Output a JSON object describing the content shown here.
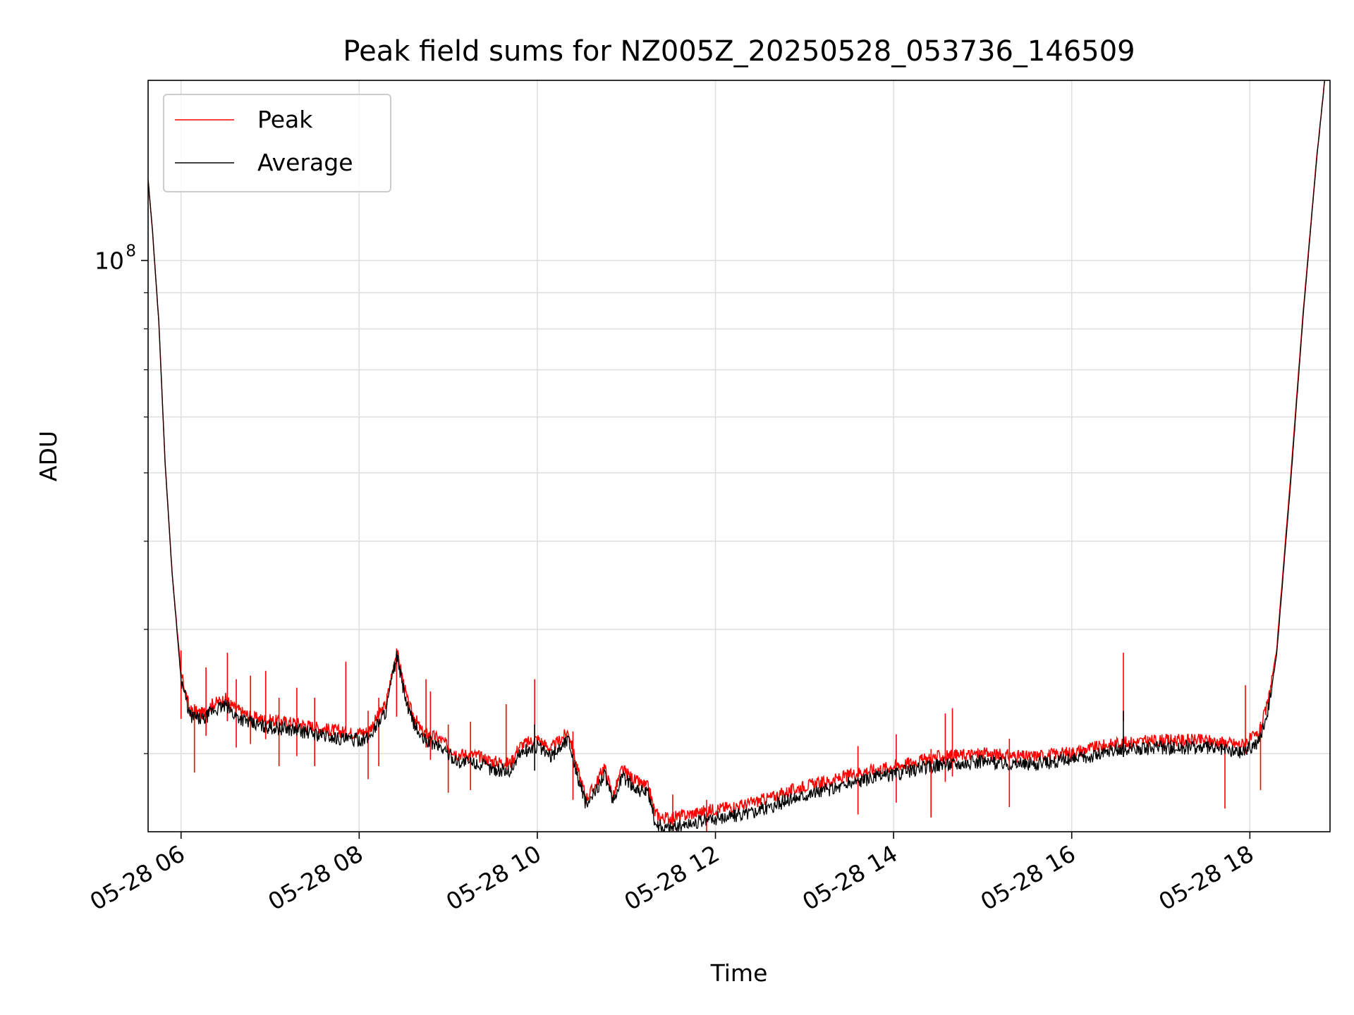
{
  "chart_data": {
    "type": "line",
    "title": "Peak field sums for NZ005Z_20250528_053736_146509",
    "xlabel": "Time",
    "ylabel": "ADU",
    "y_scale": "log",
    "x_range_hours": [
      5.63,
      18.9
    ],
    "ylim": [
      15500000,
      180000000
    ],
    "grid": true,
    "legend_position": "upper-left",
    "x_ticks": [
      {
        "value": 6,
        "label": "05-28 06"
      },
      {
        "value": 8,
        "label": "05-28 08"
      },
      {
        "value": 10,
        "label": "05-28 10"
      },
      {
        "value": 12,
        "label": "05-28 12"
      },
      {
        "value": 14,
        "label": "05-28 14"
      },
      {
        "value": 16,
        "label": "05-28 16"
      },
      {
        "value": 18,
        "label": "05-28 18"
      }
    ],
    "y_major_ticks": [
      {
        "value": 100000000,
        "base": "10",
        "exp": "8"
      }
    ],
    "y_minor_ticks": [
      20000000,
      30000000,
      40000000,
      50000000,
      60000000,
      70000000,
      80000000,
      90000000
    ],
    "colors": {
      "peak": "#ff0000",
      "average": "#000000",
      "grid": "#e0e0e0"
    },
    "series": [
      {
        "name": "Peak",
        "color": "#ff0000",
        "points": [
          [
            5.63,
            130000000
          ],
          [
            5.68,
            110000000
          ],
          [
            5.75,
            82000000
          ],
          [
            5.82,
            52000000
          ],
          [
            5.9,
            36000000
          ],
          [
            6.0,
            26000000
          ],
          [
            6.1,
            23000000
          ],
          [
            6.25,
            22800000
          ],
          [
            6.35,
            23500000
          ],
          [
            6.5,
            23900000
          ],
          [
            6.6,
            23200000
          ],
          [
            6.8,
            22500000
          ],
          [
            7.0,
            22300000
          ],
          [
            7.3,
            22100000
          ],
          [
            7.6,
            21700000
          ],
          [
            7.9,
            21400000
          ],
          [
            8.1,
            21500000
          ],
          [
            8.3,
            23500000
          ],
          [
            8.42,
            28000000
          ],
          [
            8.55,
            23500000
          ],
          [
            8.7,
            21500000
          ],
          [
            8.9,
            21000000
          ],
          [
            9.1,
            20000000
          ],
          [
            9.3,
            19900000
          ],
          [
            9.5,
            19500000
          ],
          [
            9.7,
            19400000
          ],
          [
            9.8,
            20500000
          ],
          [
            10.0,
            21000000
          ],
          [
            10.15,
            20300000
          ],
          [
            10.35,
            21500000
          ],
          [
            10.45,
            19000000
          ],
          [
            10.55,
            17300000
          ],
          [
            10.65,
            18000000
          ],
          [
            10.75,
            19200000
          ],
          [
            10.85,
            17400000
          ],
          [
            10.95,
            19000000
          ],
          [
            11.1,
            18300000
          ],
          [
            11.25,
            17900000
          ],
          [
            11.32,
            16500000
          ],
          [
            11.4,
            16200000
          ],
          [
            11.6,
            16300000
          ],
          [
            11.8,
            16500000
          ],
          [
            12.0,
            16700000
          ],
          [
            12.3,
            16900000
          ],
          [
            12.6,
            17300000
          ],
          [
            13.0,
            18000000
          ],
          [
            13.3,
            18300000
          ],
          [
            13.6,
            18800000
          ],
          [
            14.0,
            19200000
          ],
          [
            14.5,
            19800000
          ],
          [
            15.0,
            20000000
          ],
          [
            15.5,
            19800000
          ],
          [
            16.0,
            20100000
          ],
          [
            16.5,
            20700000
          ],
          [
            17.0,
            20900000
          ],
          [
            17.5,
            20900000
          ],
          [
            17.9,
            20600000
          ],
          [
            18.1,
            21300000
          ],
          [
            18.2,
            23500000
          ],
          [
            18.3,
            28000000
          ],
          [
            18.45,
            48000000
          ],
          [
            18.6,
            85000000
          ],
          [
            18.75,
            140000000
          ],
          [
            18.84,
            180000000
          ]
        ]
      },
      {
        "name": "Average",
        "color": "#000000",
        "points": [
          [
            5.63,
            130000000
          ],
          [
            5.68,
            110000000
          ],
          [
            5.75,
            82000000
          ],
          [
            5.82,
            52000000
          ],
          [
            5.9,
            36000000
          ],
          [
            6.0,
            25500000
          ],
          [
            6.1,
            22600000
          ],
          [
            6.25,
            22300000
          ],
          [
            6.35,
            23000000
          ],
          [
            6.5,
            23400000
          ],
          [
            6.6,
            22700000
          ],
          [
            6.8,
            22000000
          ],
          [
            7.0,
            21800000
          ],
          [
            7.3,
            21600000
          ],
          [
            7.6,
            21200000
          ],
          [
            7.9,
            20900000
          ],
          [
            8.1,
            21000000
          ],
          [
            8.3,
            23000000
          ],
          [
            8.42,
            27500000
          ],
          [
            8.55,
            23000000
          ],
          [
            8.7,
            21000000
          ],
          [
            8.9,
            20500000
          ],
          [
            9.1,
            19500000
          ],
          [
            9.3,
            19400000
          ],
          [
            9.5,
            19000000
          ],
          [
            9.7,
            18900000
          ],
          [
            9.8,
            20000000
          ],
          [
            10.0,
            20500000
          ],
          [
            10.15,
            19800000
          ],
          [
            10.35,
            21000000
          ],
          [
            10.45,
            18600000
          ],
          [
            10.55,
            16900000
          ],
          [
            10.65,
            17600000
          ],
          [
            10.75,
            18800000
          ],
          [
            10.85,
            17000000
          ],
          [
            10.95,
            18600000
          ],
          [
            11.1,
            17900000
          ],
          [
            11.25,
            17500000
          ],
          [
            11.32,
            16000000
          ],
          [
            11.4,
            15700000
          ],
          [
            11.6,
            15800000
          ],
          [
            11.8,
            16000000
          ],
          [
            12.0,
            16200000
          ],
          [
            12.3,
            16400000
          ],
          [
            12.6,
            16800000
          ],
          [
            13.0,
            17500000
          ],
          [
            13.3,
            17800000
          ],
          [
            13.6,
            18300000
          ],
          [
            14.0,
            18700000
          ],
          [
            14.5,
            19300000
          ],
          [
            15.0,
            19500000
          ],
          [
            15.5,
            19300000
          ],
          [
            16.0,
            19600000
          ],
          [
            16.5,
            20200000
          ],
          [
            17.0,
            20400000
          ],
          [
            17.5,
            20400000
          ],
          [
            17.9,
            20100000
          ],
          [
            18.1,
            20800000
          ],
          [
            18.2,
            23000000
          ],
          [
            18.3,
            27500000
          ],
          [
            18.45,
            47000000
          ],
          [
            18.6,
            84000000
          ],
          [
            18.75,
            139000000
          ],
          [
            18.84,
            180000000
          ]
        ]
      }
    ],
    "peak_spikes": [
      [
        6.0,
        28000000
      ],
      [
        6.15,
        23500000
      ],
      [
        6.28,
        26500000
      ],
      [
        6.52,
        27800000
      ],
      [
        6.62,
        25500000
      ],
      [
        6.78,
        25800000
      ],
      [
        6.95,
        26200000
      ],
      [
        7.1,
        24000000
      ],
      [
        7.3,
        24800000
      ],
      [
        7.5,
        24000000
      ],
      [
        7.85,
        27000000
      ],
      [
        8.1,
        23000000
      ],
      [
        8.22,
        24000000
      ],
      [
        8.42,
        28200000
      ],
      [
        8.75,
        25500000
      ],
      [
        8.8,
        24500000
      ],
      [
        9.0,
        22000000
      ],
      [
        9.25,
        22200000
      ],
      [
        9.65,
        23500000
      ],
      [
        9.97,
        25500000
      ],
      [
        10.4,
        21500000
      ],
      [
        11.52,
        17500000
      ],
      [
        11.9,
        17200000
      ],
      [
        13.6,
        20500000
      ],
      [
        14.03,
        21300000
      ],
      [
        14.42,
        20300000
      ],
      [
        14.58,
        22800000
      ],
      [
        14.66,
        23200000
      ],
      [
        15.3,
        21000000
      ],
      [
        16.58,
        27800000
      ],
      [
        17.72,
        20900000
      ],
      [
        17.95,
        25000000
      ],
      [
        18.12,
        22200000
      ]
    ],
    "average_spikes": [
      [
        16.58,
        23000000
      ],
      [
        9.97,
        22000000
      ]
    ]
  }
}
